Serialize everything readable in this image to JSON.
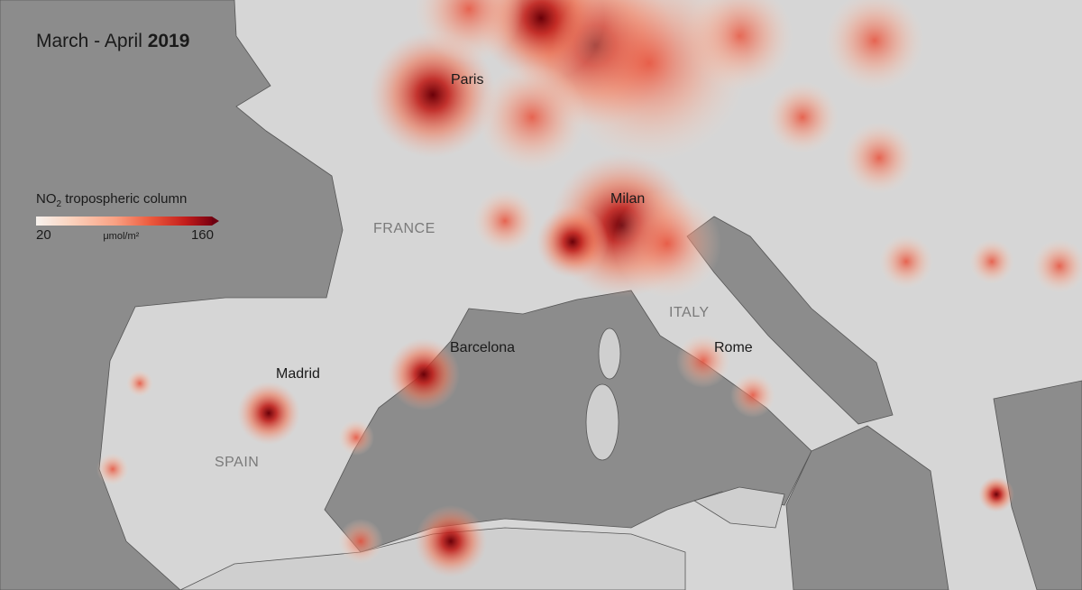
{
  "title": {
    "prefix": "March - April ",
    "year": "2019"
  },
  "legend": {
    "name_pre": "NO",
    "name_sub": "2",
    "name_post": " tropospheric column",
    "min": "20",
    "max": "160",
    "unit": "μmol/m²",
    "colors": [
      "#f7f2ee",
      "#fbd3be",
      "#f9a183",
      "#ec5a3d",
      "#c31d1b",
      "#7a0010"
    ]
  },
  "cities": [
    "Paris",
    "Milan",
    "Barcelona",
    "Madrid",
    "Rome"
  ],
  "countries": [
    "FRANCE",
    "SPAIN",
    "ITALY"
  ],
  "colors": {
    "sea": "#8c8c8c",
    "land": "#d4d4d4",
    "borders": "#555555"
  }
}
